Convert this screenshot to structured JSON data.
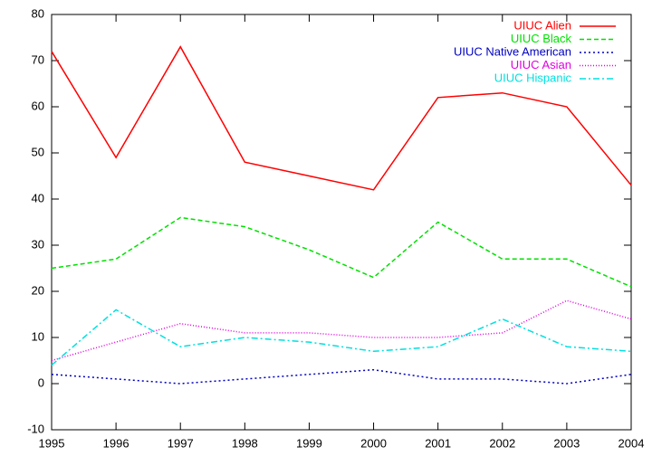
{
  "chart_data": {
    "type": "line",
    "x": [
      1995,
      1996,
      1997,
      1998,
      1999,
      2000,
      2001,
      2002,
      2003,
      2004
    ],
    "xlim": [
      1995,
      2004
    ],
    "xticks": [
      1995,
      1996,
      1997,
      1998,
      1999,
      2000,
      2001,
      2002,
      2003,
      2004
    ],
    "ylim": [
      -10,
      80
    ],
    "yticks": [
      -10,
      0,
      10,
      20,
      30,
      40,
      50,
      60,
      70,
      80
    ],
    "legend": "top-right",
    "series": [
      {
        "name": "UIUC Alien",
        "color": "#ff0000",
        "dash": "solid",
        "values": [
          72,
          49,
          73,
          48,
          45,
          42,
          62,
          63,
          60,
          43
        ]
      },
      {
        "name": "UIUC Black",
        "color": "#00e000",
        "dash": "dashed",
        "values": [
          25,
          27,
          36,
          34,
          29,
          23,
          35,
          27,
          27,
          21
        ]
      },
      {
        "name": "UIUC Native American",
        "color": "#0000c0",
        "dash": "dotted",
        "values": [
          2,
          1,
          0,
          1,
          2,
          3,
          1,
          1,
          0,
          2
        ]
      },
      {
        "name": "UIUC Asian",
        "color": "#e000e0",
        "dash": "fine-dotted",
        "values": [
          5,
          9,
          13,
          11,
          11,
          10,
          10,
          11,
          18,
          14
        ]
      },
      {
        "name": "UIUC Hispanic",
        "color": "#00e0e0",
        "dash": "dashdot",
        "values": [
          4,
          16,
          8,
          10,
          9,
          7,
          8,
          14,
          8,
          7
        ]
      }
    ]
  }
}
